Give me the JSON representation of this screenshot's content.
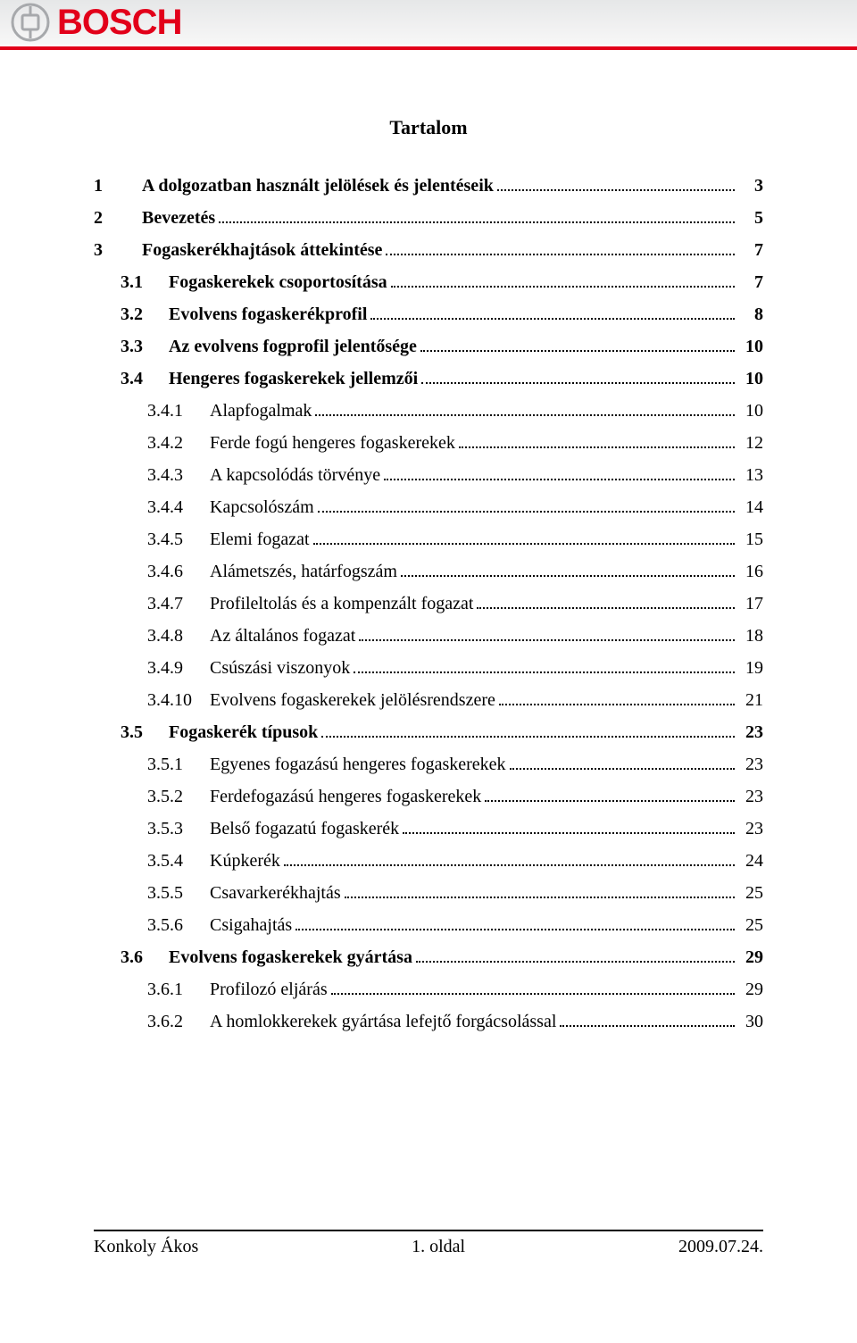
{
  "brand": {
    "name": "BOSCH",
    "primary_color": "#e2001a",
    "icon_gray": "#a7a9ac",
    "header_bg_top": "#e6e7e8",
    "header_bg_bottom": "#f7f7f7"
  },
  "title": "Tartalom",
  "toc": [
    {
      "level": 1,
      "num": "1",
      "label": "A dolgozatban használt jelölések és jelentéseik",
      "page": "3"
    },
    {
      "level": 1,
      "num": "2",
      "label": "Bevezetés",
      "page": "5"
    },
    {
      "level": 1,
      "num": "3",
      "label": "Fogaskerékhajtások áttekintése",
      "page": "7"
    },
    {
      "level": 2,
      "num": "3.1",
      "label": "Fogaskerekek csoportosítása",
      "page": "7"
    },
    {
      "level": 2,
      "num": "3.2",
      "label": "Evolvens fogaskerékprofil",
      "page": "8"
    },
    {
      "level": 2,
      "num": "3.3",
      "label": "Az evolvens fogprofil jelentősége",
      "page": "10"
    },
    {
      "level": 2,
      "num": "3.4",
      "label": "Hengeres fogaskerekek jellemzői",
      "page": "10"
    },
    {
      "level": 3,
      "num": "3.4.1",
      "label": "Alapfogalmak",
      "page": "10"
    },
    {
      "level": 3,
      "num": "3.4.2",
      "label": "Ferde fogú hengeres fogaskerekek",
      "page": "12"
    },
    {
      "level": 3,
      "num": "3.4.3",
      "label": "A kapcsolódás törvénye",
      "page": "13"
    },
    {
      "level": 3,
      "num": "3.4.4",
      "label": "Kapcsolószám",
      "page": "14"
    },
    {
      "level": 3,
      "num": "3.4.5",
      "label": "Elemi fogazat",
      "page": "15"
    },
    {
      "level": 3,
      "num": "3.4.6",
      "label": "Alámetszés, határfogszám",
      "page": "16"
    },
    {
      "level": 3,
      "num": "3.4.7",
      "label": "Profileltolás és a kompenzált fogazat",
      "page": "17"
    },
    {
      "level": 3,
      "num": "3.4.8",
      "label": "Az általános fogazat",
      "page": "18"
    },
    {
      "level": 3,
      "num": "3.4.9",
      "label": "Csúszási viszonyok",
      "page": "19"
    },
    {
      "level": 3,
      "num": "3.4.10",
      "label": "Evolvens fogaskerekek jelölésrendszere",
      "page": "21"
    },
    {
      "level": 2,
      "num": "3.5",
      "label": "Fogaskerék típusok",
      "page": "23"
    },
    {
      "level": 3,
      "num": "3.5.1",
      "label": "Egyenes fogazású hengeres fogaskerekek",
      "page": "23"
    },
    {
      "level": 3,
      "num": "3.5.2",
      "label": "Ferdefogazású hengeres fogaskerekek",
      "page": "23"
    },
    {
      "level": 3,
      "num": "3.5.3",
      "label": "Belső fogazatú fogaskerék",
      "page": "23"
    },
    {
      "level": 3,
      "num": "3.5.4",
      "label": "Kúpkerék",
      "page": "24"
    },
    {
      "level": 3,
      "num": "3.5.5",
      "label": "Csavarkerékhajtás",
      "page": "25"
    },
    {
      "level": 3,
      "num": "3.5.6",
      "label": "Csigahajtás",
      "page": "25"
    },
    {
      "level": 2,
      "num": "3.6",
      "label": "Evolvens fogaskerekek gyártása",
      "page": "29"
    },
    {
      "level": 3,
      "num": "3.6.1",
      "label": "Profilozó eljárás",
      "page": "29"
    },
    {
      "level": 3,
      "num": "3.6.2",
      "label": "A homlokkerekek gyártása lefejtő forgácsolással",
      "page": "30"
    }
  ],
  "footer": {
    "author": "Konkoly Ákos",
    "page_label": "1. oldal",
    "date": "2009.07.24."
  }
}
